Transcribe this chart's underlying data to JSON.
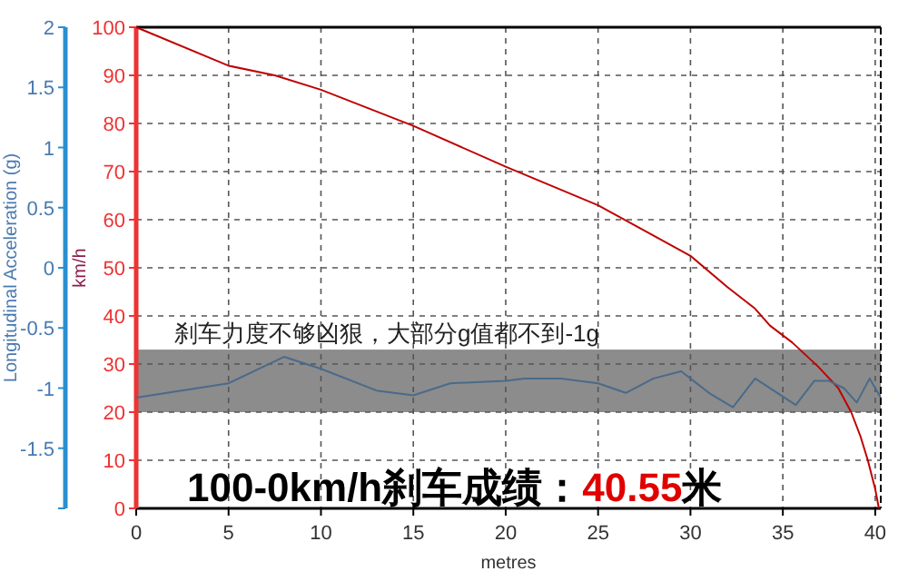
{
  "chart_data": {
    "type": "line",
    "xlabel": "metres",
    "ylabel": "km/h",
    "y2label": "Longitudinal Acceleration (g)",
    "xlim": [
      0,
      40.3
    ],
    "xticks": [
      0,
      5,
      10,
      15,
      20,
      25,
      30,
      35,
      40
    ],
    "ylim": [
      0,
      100
    ],
    "yticks": [
      0,
      10,
      20,
      30,
      40,
      50,
      60,
      70,
      80,
      90,
      100
    ],
    "y2lim": [
      -2,
      2
    ],
    "y2ticks": [
      {
        "value": -2,
        "label": null
      },
      -1.5,
      -1,
      -0.5,
      0,
      0.5,
      1,
      1.5,
      2
    ],
    "grid": true,
    "line_style": "solid",
    "series": [
      {
        "color": "#c00000",
        "x": [
          0,
          5,
          7.5,
          10,
          15,
          20,
          25,
          30,
          32,
          33.5,
          34.3,
          35.5,
          36.9,
          38,
          38.7,
          39.2,
          39.6,
          40,
          40.2
        ],
        "values": [
          100,
          92,
          90,
          87,
          79.5,
          71,
          63,
          52.5,
          46,
          41.5,
          38,
          34.5,
          29.5,
          25,
          20,
          15,
          10,
          4,
          0
        ]
      },
      {
        "axis": "y2",
        "color": "#4a6a8a",
        "x": [
          0,
          5,
          8,
          10,
          13,
          15,
          17,
          20,
          21,
          23,
          25,
          26.5,
          28,
          29.5,
          31,
          32.3,
          33.5,
          35.7,
          36.7,
          37.5,
          38.3,
          39,
          39.7,
          40.3
        ],
        "values": [
          -1.08,
          -0.96,
          -0.74,
          -0.84,
          -1.02,
          -1.06,
          -0.96,
          -0.94,
          -0.92,
          -0.92,
          -0.96,
          -1.04,
          -0.92,
          -0.86,
          -1.04,
          -1.16,
          -0.92,
          -1.14,
          -0.94,
          -0.94,
          -1.0,
          -1.12,
          -0.92,
          -1.08
        ]
      }
    ],
    "bands": [
      {
        "axis": "y",
        "from": 20,
        "to": 33,
        "color": "#8c8c8c"
      }
    ],
    "annotations": [
      "刹车力度不够凶狠，大部分g值都不到-1g",
      "100-0km/h刹车成绩：40.55米"
    ]
  }
}
